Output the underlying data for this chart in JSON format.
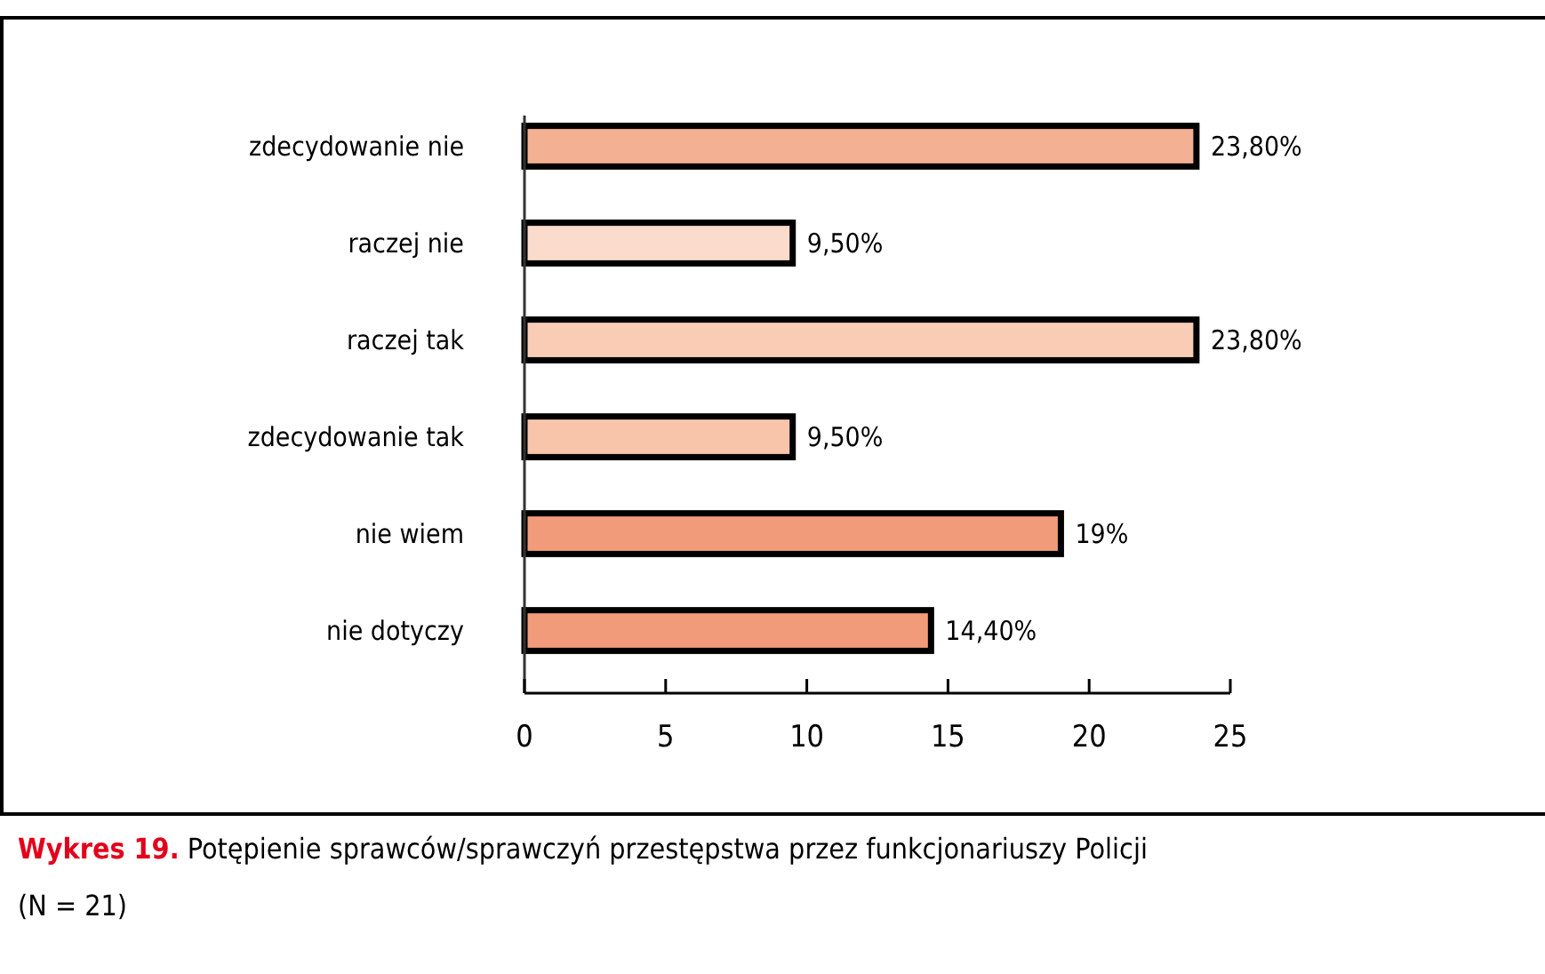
{
  "chart_data": {
    "type": "bar",
    "orientation": "horizontal",
    "title": "Wykres 19. Potępienie sprawców/sprawczyń przestępstwa przez funkcjonariuszy Policji",
    "annotations": [
      "(N = 21)"
    ],
    "categories": [
      "zdecydowanie nie",
      "raczej nie",
      "raczej tak",
      "zdecydowanie tak",
      "nie wiem",
      "nie dotyczy"
    ],
    "values": [
      23.8,
      9.5,
      23.8,
      9.5,
      19,
      14.4
    ],
    "colors": [
      "#f4b093",
      "#fadbcc",
      "#f9cdb5",
      "#f8c5ab",
      "#f19b7a",
      "#f19b7a"
    ],
    "value_labels": [
      "23,80%",
      "9,50%",
      "23,80%",
      "9,50%",
      "19%",
      "14,40%"
    ],
    "xlim": [
      0,
      25
    ],
    "xticks": [
      0,
      5,
      10,
      15,
      20,
      25
    ],
    "grid": false
  }
}
